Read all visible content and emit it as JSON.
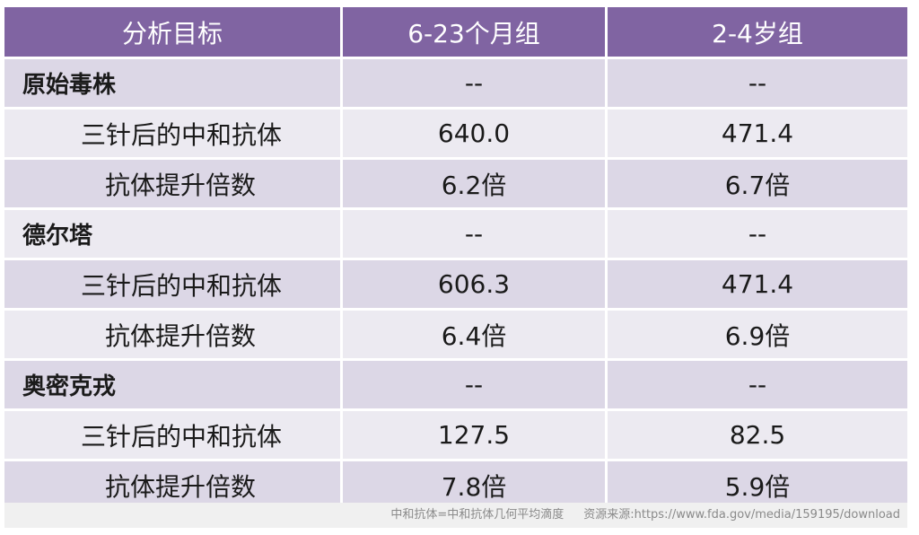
{
  "table": {
    "headers": [
      "分析目标",
      "6-23个月组",
      "2-4岁组"
    ],
    "groups": [
      {
        "name": "原始毒株",
        "values": [
          "--",
          "--"
        ],
        "rows": [
          {
            "label": "三针后的中和抗体",
            "values": [
              "640.0",
              "471.4"
            ]
          },
          {
            "label": "抗体提升倍数",
            "values": [
              "6.2倍",
              "6.7倍"
            ]
          }
        ]
      },
      {
        "name": "德尔塔",
        "values": [
          "--",
          "--"
        ],
        "rows": [
          {
            "label": "三针后的中和抗体",
            "values": [
              "606.3",
              "471.4"
            ]
          },
          {
            "label": "抗体提升倍数",
            "values": [
              "6.4倍",
              "6.9倍"
            ]
          }
        ]
      },
      {
        "name": "奥密克戎",
        "values": [
          "--",
          "--"
        ],
        "rows": [
          {
            "label": "三针后的中和抗体",
            "values": [
              "127.5",
              "82.5"
            ]
          },
          {
            "label": "抗体提升倍数",
            "values": [
              "7.8倍",
              "5.9倍"
            ]
          }
        ]
      }
    ]
  },
  "footnote": {
    "definition": "中和抗体=中和抗体几何平均滴度",
    "source": "资源来源:https://www.fda.gov/media/159195/download"
  },
  "colors": {
    "header_bg": "#8064a2",
    "row_dark": "#dcd7e6",
    "row_light": "#eceaf1"
  }
}
